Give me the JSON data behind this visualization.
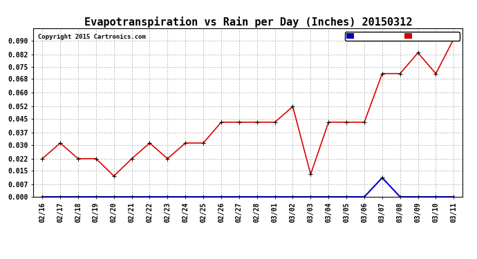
{
  "title": "Evapotranspiration vs Rain per Day (Inches) 20150312",
  "copyright": "Copyright 2015 Cartronics.com",
  "x_labels": [
    "02/16",
    "02/17",
    "02/18",
    "02/19",
    "02/20",
    "02/21",
    "02/22",
    "02/23",
    "02/24",
    "02/25",
    "02/26",
    "02/27",
    "02/28",
    "03/01",
    "03/02",
    "03/03",
    "03/04",
    "03/05",
    "03/06",
    "03/07",
    "03/08",
    "03/09",
    "03/10",
    "03/11"
  ],
  "et_values": [
    0.022,
    0.031,
    0.022,
    0.022,
    0.012,
    0.022,
    0.031,
    0.022,
    0.031,
    0.031,
    0.043,
    0.043,
    0.043,
    0.043,
    0.052,
    0.013,
    0.043,
    0.043,
    0.043,
    0.071,
    0.071,
    0.083,
    0.071,
    0.091
  ],
  "rain_values": [
    0.0,
    0.0,
    0.0,
    0.0,
    0.0,
    0.0,
    0.0,
    0.0,
    0.0,
    0.0,
    0.0,
    0.0,
    0.0,
    0.0,
    0.0,
    0.0,
    0.0,
    0.0,
    0.0,
    0.011,
    0.0,
    0.0,
    0.0,
    0.0
  ],
  "et_color": "#dd0000",
  "rain_color": "#0000cc",
  "background_color": "#ffffff",
  "grid_color": "#c0c0c0",
  "ylim": [
    0.0,
    0.097
  ],
  "yticks": [
    0.0,
    0.007,
    0.015,
    0.022,
    0.03,
    0.037,
    0.045,
    0.052,
    0.06,
    0.068,
    0.075,
    0.082,
    0.09
  ],
  "legend_rain_bg": "#0000bb",
  "legend_et_bg": "#cc0000",
  "title_fontsize": 11,
  "tick_fontsize": 7,
  "copyright_fontsize": 6.5
}
